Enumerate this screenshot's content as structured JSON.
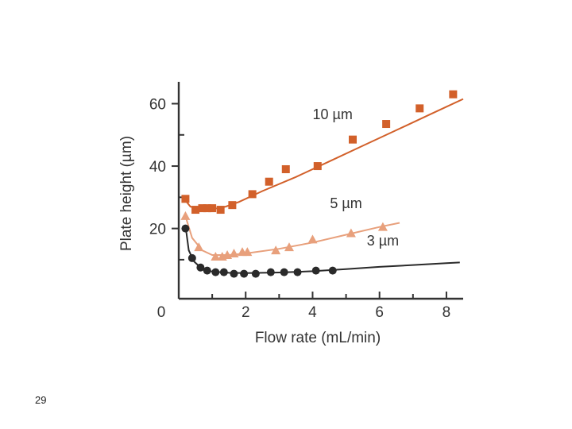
{
  "slide": {
    "page_number": "29"
  },
  "chart_data": {
    "type": "scatter",
    "title": "",
    "xlabel": "Flow rate (mL/min)",
    "ylabel": "Plate height (µm)",
    "xlim": [
      0,
      8.5
    ],
    "ylim": [
      -2.5,
      67
    ],
    "x_ticks": [
      0,
      2,
      4,
      6,
      8
    ],
    "x_tick_labels": [
      "0",
      "2",
      "4",
      "6",
      "8"
    ],
    "y_ticks": [
      20,
      40,
      60
    ],
    "y_tick_labels": [
      "20",
      "40",
      "60"
    ],
    "grid": false,
    "series": [
      {
        "name": "10 µm",
        "marker": "square",
        "color": "#d2602a",
        "points": [
          [
            0.2,
            29.5
          ],
          [
            0.5,
            26
          ],
          [
            0.7,
            26.5
          ],
          [
            0.85,
            26.5
          ],
          [
            1.0,
            26.5
          ],
          [
            1.25,
            26
          ],
          [
            1.6,
            27.5
          ],
          [
            2.2,
            31
          ],
          [
            2.7,
            35
          ],
          [
            3.2,
            39
          ],
          [
            4.15,
            40
          ],
          [
            5.2,
            48.5
          ],
          [
            6.2,
            53.5
          ],
          [
            7.2,
            58.5
          ],
          [
            8.2,
            63
          ]
        ],
        "curve": [
          [
            0.2,
            29
          ],
          [
            0.35,
            27
          ],
          [
            0.6,
            26.3
          ],
          [
            1.0,
            26.2
          ],
          [
            1.4,
            27
          ],
          [
            1.8,
            28.5
          ],
          [
            2.5,
            32
          ],
          [
            3.5,
            36.5
          ],
          [
            4.5,
            41.5
          ],
          [
            5.5,
            46.5
          ],
          [
            6.5,
            51.5
          ],
          [
            7.5,
            56.5
          ],
          [
            8.5,
            61.5
          ]
        ],
        "label_pos": [
          4.6,
          55
        ]
      },
      {
        "name": "5 µm",
        "marker": "triangle",
        "color": "#e8a07c",
        "points": [
          [
            0.2,
            24
          ],
          [
            0.6,
            14
          ],
          [
            1.1,
            11
          ],
          [
            1.3,
            11
          ],
          [
            1.45,
            11.5
          ],
          [
            1.65,
            12
          ],
          [
            1.9,
            12.5
          ],
          [
            2.05,
            12.5
          ],
          [
            2.9,
            13
          ],
          [
            3.3,
            14
          ],
          [
            4.0,
            16.5
          ],
          [
            5.15,
            18.5
          ],
          [
            6.1,
            20.5
          ]
        ],
        "curve": [
          [
            0.2,
            24
          ],
          [
            0.4,
            17
          ],
          [
            0.7,
            13
          ],
          [
            1.0,
            11.5
          ],
          [
            1.5,
            11.5
          ],
          [
            2.0,
            12
          ],
          [
            3.0,
            13.5
          ],
          [
            4.0,
            15.5
          ],
          [
            5.0,
            18
          ],
          [
            6.0,
            20.5
          ],
          [
            6.6,
            21.8
          ]
        ],
        "label_pos": [
          5.0,
          26.5
        ]
      },
      {
        "name": "3 µm",
        "marker": "circle",
        "color": "#2a2a2a",
        "points": [
          [
            0.2,
            20
          ],
          [
            0.4,
            10.5
          ],
          [
            0.65,
            7.5
          ],
          [
            0.85,
            6.5
          ],
          [
            1.1,
            6
          ],
          [
            1.35,
            6
          ],
          [
            1.65,
            5.5
          ],
          [
            1.95,
            5.5
          ],
          [
            2.3,
            5.5
          ],
          [
            2.75,
            6
          ],
          [
            3.15,
            6
          ],
          [
            3.55,
            6
          ],
          [
            4.1,
            6.5
          ],
          [
            4.6,
            6.5
          ]
        ],
        "curve": [
          [
            0.2,
            21
          ],
          [
            0.3,
            13
          ],
          [
            0.45,
            9.5
          ],
          [
            0.7,
            7
          ],
          [
            1.0,
            6.2
          ],
          [
            1.5,
            5.8
          ],
          [
            2.0,
            5.7
          ],
          [
            3.0,
            5.9
          ],
          [
            4.0,
            6.3
          ],
          [
            5.0,
            7.0
          ],
          [
            6.0,
            7.7
          ],
          [
            7.0,
            8.3
          ],
          [
            8.0,
            8.9
          ],
          [
            8.4,
            9.1
          ]
        ],
        "label_pos": [
          6.1,
          14.5
        ]
      }
    ]
  }
}
